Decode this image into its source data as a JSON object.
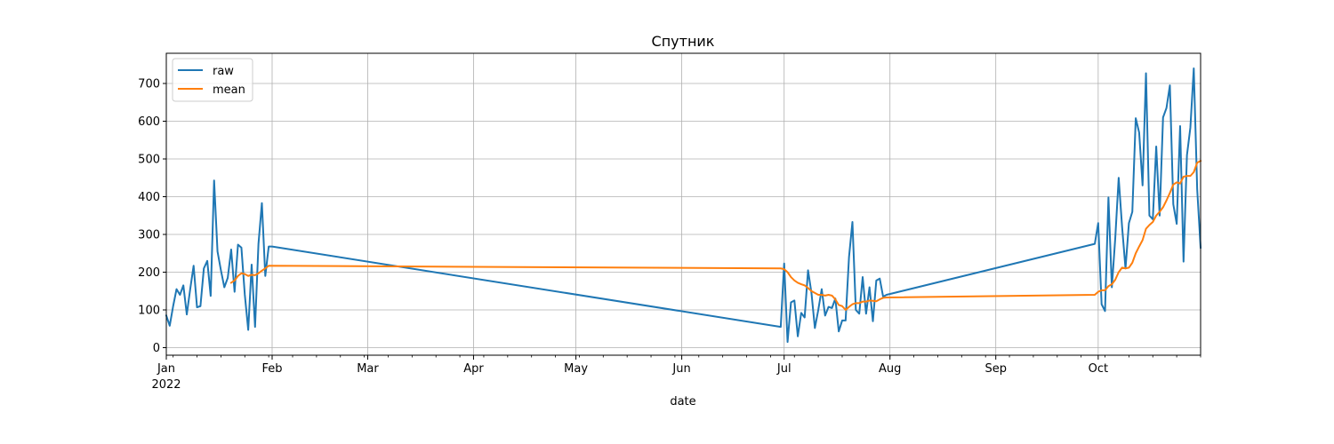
{
  "chart_data": {
    "type": "line",
    "title": "Спутник",
    "xlabel": "date",
    "ylabel": "",
    "xlim": [
      "2022-01-01",
      "2022-10-31"
    ],
    "ylim": [
      -20,
      780
    ],
    "grid": true,
    "legend_position": "top-left",
    "x_ticks": [
      {
        "date": "2022-01-01",
        "label": "Jan",
        "sublabel": "2022"
      },
      {
        "date": "2022-02-01",
        "label": "Feb",
        "sublabel": ""
      },
      {
        "date": "2022-03-01",
        "label": "Mar",
        "sublabel": ""
      },
      {
        "date": "2022-04-01",
        "label": "Apr",
        "sublabel": ""
      },
      {
        "date": "2022-05-01",
        "label": "May",
        "sublabel": ""
      },
      {
        "date": "2022-06-01",
        "label": "Jun",
        "sublabel": ""
      },
      {
        "date": "2022-07-01",
        "label": "Jul",
        "sublabel": ""
      },
      {
        "date": "2022-08-01",
        "label": "Aug",
        "sublabel": ""
      },
      {
        "date": "2022-09-01",
        "label": "Sep",
        "sublabel": ""
      },
      {
        "date": "2022-10-01",
        "label": "Oct",
        "sublabel": ""
      }
    ],
    "y_ticks": [
      0,
      100,
      200,
      300,
      400,
      500,
      600,
      700
    ],
    "series": [
      {
        "name": "raw",
        "color": "#1f77b4",
        "points": [
          [
            "2022-01-01",
            85
          ],
          [
            "2022-01-02",
            58
          ],
          [
            "2022-01-03",
            110
          ],
          [
            "2022-01-04",
            155
          ],
          [
            "2022-01-05",
            140
          ],
          [
            "2022-01-06",
            165
          ],
          [
            "2022-01-07",
            88
          ],
          [
            "2022-01-08",
            155
          ],
          [
            "2022-01-09",
            217
          ],
          [
            "2022-01-10",
            107
          ],
          [
            "2022-01-11",
            110
          ],
          [
            "2022-01-12",
            210
          ],
          [
            "2022-01-13",
            230
          ],
          [
            "2022-01-14",
            137
          ],
          [
            "2022-01-15",
            443
          ],
          [
            "2022-01-16",
            255
          ],
          [
            "2022-01-17",
            205
          ],
          [
            "2022-01-18",
            160
          ],
          [
            "2022-01-19",
            185
          ],
          [
            "2022-01-20",
            260
          ],
          [
            "2022-01-21",
            148
          ],
          [
            "2022-01-22",
            273
          ],
          [
            "2022-01-23",
            265
          ],
          [
            "2022-01-24",
            140
          ],
          [
            "2022-01-25",
            47
          ],
          [
            "2022-01-26",
            220
          ],
          [
            "2022-01-27",
            55
          ],
          [
            "2022-01-28",
            275
          ],
          [
            "2022-01-29",
            383
          ],
          [
            "2022-01-30",
            190
          ],
          [
            "2022-01-31",
            268
          ],
          [
            "2022-02-01",
            268
          ],
          [
            "2022-06-30",
            55
          ],
          [
            "2022-07-01",
            223
          ],
          [
            "2022-07-02",
            15
          ],
          [
            "2022-07-03",
            120
          ],
          [
            "2022-07-04",
            125
          ],
          [
            "2022-07-05",
            30
          ],
          [
            "2022-07-06",
            92
          ],
          [
            "2022-07-07",
            80
          ],
          [
            "2022-07-08",
            205
          ],
          [
            "2022-07-09",
            145
          ],
          [
            "2022-07-10",
            52
          ],
          [
            "2022-07-11",
            100
          ],
          [
            "2022-07-12",
            155
          ],
          [
            "2022-07-13",
            85
          ],
          [
            "2022-07-14",
            108
          ],
          [
            "2022-07-15",
            105
          ],
          [
            "2022-07-16",
            130
          ],
          [
            "2022-07-17",
            43
          ],
          [
            "2022-07-18",
            72
          ],
          [
            "2022-07-19",
            72
          ],
          [
            "2022-07-20",
            240
          ],
          [
            "2022-07-21",
            333
          ],
          [
            "2022-07-22",
            100
          ],
          [
            "2022-07-23",
            90
          ],
          [
            "2022-07-24",
            187
          ],
          [
            "2022-07-25",
            90
          ],
          [
            "2022-07-26",
            160
          ],
          [
            "2022-07-27",
            70
          ],
          [
            "2022-07-28",
            178
          ],
          [
            "2022-07-29",
            183
          ],
          [
            "2022-07-30",
            135
          ],
          [
            "2022-07-31",
            140
          ],
          [
            "2022-09-30",
            275
          ],
          [
            "2022-10-01",
            330
          ],
          [
            "2022-10-02",
            115
          ],
          [
            "2022-10-03",
            97
          ],
          [
            "2022-10-04",
            398
          ],
          [
            "2022-10-05",
            160
          ],
          [
            "2022-10-06",
            290
          ],
          [
            "2022-10-07",
            450
          ],
          [
            "2022-10-08",
            320
          ],
          [
            "2022-10-09",
            210
          ],
          [
            "2022-10-10",
            330
          ],
          [
            "2022-10-11",
            360
          ],
          [
            "2022-10-12",
            608
          ],
          [
            "2022-10-13",
            570
          ],
          [
            "2022-10-14",
            430
          ],
          [
            "2022-10-15",
            727
          ],
          [
            "2022-10-16",
            350
          ],
          [
            "2022-10-17",
            340
          ],
          [
            "2022-10-18",
            533
          ],
          [
            "2022-10-19",
            350
          ],
          [
            "2022-10-20",
            610
          ],
          [
            "2022-10-21",
            635
          ],
          [
            "2022-10-22",
            695
          ],
          [
            "2022-10-23",
            380
          ],
          [
            "2022-10-24",
            328
          ],
          [
            "2022-10-25",
            587
          ],
          [
            "2022-10-26",
            228
          ],
          [
            "2022-10-27",
            510
          ],
          [
            "2022-10-28",
            583
          ],
          [
            "2022-10-29",
            740
          ],
          [
            "2022-10-30",
            420
          ],
          [
            "2022-10-31",
            265
          ]
        ]
      },
      {
        "name": "mean",
        "color": "#ff7f0e",
        "points": [
          [
            "2022-01-20",
            172
          ],
          [
            "2022-01-21",
            178
          ],
          [
            "2022-01-22",
            190
          ],
          [
            "2022-01-23",
            197
          ],
          [
            "2022-01-24",
            195
          ],
          [
            "2022-01-25",
            190
          ],
          [
            "2022-01-26",
            193
          ],
          [
            "2022-01-27",
            192
          ],
          [
            "2022-01-28",
            197
          ],
          [
            "2022-01-29",
            204
          ],
          [
            "2022-01-30",
            210
          ],
          [
            "2022-01-31",
            217
          ],
          [
            "2022-06-30",
            210
          ],
          [
            "2022-07-01",
            208
          ],
          [
            "2022-07-02",
            200
          ],
          [
            "2022-07-03",
            187
          ],
          [
            "2022-07-04",
            178
          ],
          [
            "2022-07-05",
            172
          ],
          [
            "2022-07-06",
            168
          ],
          [
            "2022-07-07",
            165
          ],
          [
            "2022-07-08",
            158
          ],
          [
            "2022-07-09",
            150
          ],
          [
            "2022-07-10",
            145
          ],
          [
            "2022-07-11",
            140
          ],
          [
            "2022-07-12",
            140
          ],
          [
            "2022-07-13",
            138
          ],
          [
            "2022-07-14",
            140
          ],
          [
            "2022-07-15",
            138
          ],
          [
            "2022-07-16",
            128
          ],
          [
            "2022-07-17",
            113
          ],
          [
            "2022-07-18",
            110
          ],
          [
            "2022-07-19",
            100
          ],
          [
            "2022-07-20",
            108
          ],
          [
            "2022-07-21",
            115
          ],
          [
            "2022-07-22",
            118
          ],
          [
            "2022-07-23",
            118
          ],
          [
            "2022-07-24",
            122
          ],
          [
            "2022-07-25",
            122
          ],
          [
            "2022-07-26",
            125
          ],
          [
            "2022-07-27",
            124
          ],
          [
            "2022-07-28",
            123
          ],
          [
            "2022-07-29",
            128
          ],
          [
            "2022-07-30",
            132
          ],
          [
            "2022-07-31",
            133
          ],
          [
            "2022-09-30",
            140
          ],
          [
            "2022-10-01",
            148
          ],
          [
            "2022-10-02",
            152
          ],
          [
            "2022-10-03",
            152
          ],
          [
            "2022-10-04",
            163
          ],
          [
            "2022-10-05",
            168
          ],
          [
            "2022-10-06",
            180
          ],
          [
            "2022-10-07",
            200
          ],
          [
            "2022-10-08",
            212
          ],
          [
            "2022-10-09",
            210
          ],
          [
            "2022-10-10",
            212
          ],
          [
            "2022-10-11",
            225
          ],
          [
            "2022-10-12",
            250
          ],
          [
            "2022-10-13",
            268
          ],
          [
            "2022-10-14",
            285
          ],
          [
            "2022-10-15",
            315
          ],
          [
            "2022-10-16",
            325
          ],
          [
            "2022-10-17",
            333
          ],
          [
            "2022-10-18",
            350
          ],
          [
            "2022-10-19",
            360
          ],
          [
            "2022-10-20",
            372
          ],
          [
            "2022-10-21",
            390
          ],
          [
            "2022-10-22",
            410
          ],
          [
            "2022-10-23",
            432
          ],
          [
            "2022-10-24",
            438
          ],
          [
            "2022-10-25",
            435
          ],
          [
            "2022-10-26",
            453
          ],
          [
            "2022-10-27",
            455
          ],
          [
            "2022-10-28",
            455
          ],
          [
            "2022-10-29",
            465
          ],
          [
            "2022-10-30",
            490
          ],
          [
            "2022-10-31",
            495
          ]
        ]
      }
    ]
  }
}
